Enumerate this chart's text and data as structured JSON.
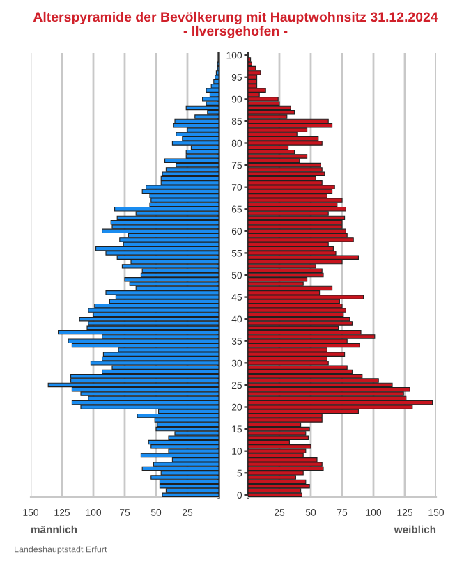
{
  "chart_data": [
    {
      "type": "bar",
      "orientation": "horizontal",
      "title": "Alterspyramide der Bevölkerung mit Hauptwohnsitz 31.12.2024",
      "subtitle": "- Ilversgehofen -",
      "xlabel": "männlich",
      "annotations": [
        "Landeshauptstadt Erfurt"
      ],
      "categories": [
        null,
        null,
        null,
        null,
        null,
        null,
        null,
        null,
        null,
        null,
        null,
        null,
        null,
        null,
        null,
        null,
        null,
        null,
        null,
        null,
        null,
        null,
        null,
        null,
        null,
        null,
        null,
        null,
        null,
        null,
        null,
        null,
        null,
        null,
        null,
        null,
        null,
        null,
        null,
        null,
        null,
        null,
        null,
        null,
        null,
        null,
        null,
        null,
        null,
        null,
        null,
        null,
        null,
        null,
        null,
        null,
        null,
        null,
        null,
        null,
        null,
        null,
        null,
        null,
        null,
        null,
        null,
        null,
        null,
        null,
        null,
        null,
        null,
        null,
        null,
        null,
        null,
        null,
        null,
        null,
        null,
        null,
        null,
        null,
        null,
        null,
        null,
        null,
        null,
        null,
        null,
        null,
        null,
        null,
        null,
        null,
        null,
        null,
        null,
        null,
        null
      ],
      "series": [
        {
          "color": "#1a8cf0",
          "values": [
            0,
            0,
            1,
            1,
            2,
            3,
            4,
            6,
            10,
            7,
            13,
            10,
            26,
            9,
            19,
            35,
            36,
            25,
            34,
            29,
            37,
            22,
            26,
            26,
            43,
            34,
            42,
            45,
            46,
            46,
            58,
            61,
            55,
            54,
            55,
            83,
            66,
            81,
            86,
            85,
            93,
            72,
            79,
            76,
            98,
            90,
            81,
            70,
            77,
            61,
            62,
            75,
            71,
            66,
            90,
            82,
            87,
            99,
            104,
            100,
            111,
            104,
            105,
            128,
            93,
            120,
            117,
            80,
            92,
            93,
            102,
            85,
            93,
            118,
            118,
            136,
            117,
            110,
            104,
            117,
            110,
            48,
            65,
            51,
            49,
            50,
            35,
            40,
            56,
            54,
            40,
            62,
            37,
            52,
            61,
            46,
            54,
            47,
            47,
            42,
            45
          ]
        }
      ],
      "xlim": [
        150,
        0
      ],
      "xticks": [
        150,
        125,
        100,
        75,
        50,
        25
      ],
      "grid": "x",
      "tick_labels": "x"
    },
    {
      "type": "bar",
      "orientation": "horizontal",
      "xlabel": "weiblich",
      "categories": [
        "100",
        null,
        null,
        null,
        null,
        "95",
        null,
        null,
        null,
        null,
        "90",
        null,
        null,
        null,
        null,
        "85",
        null,
        null,
        null,
        null,
        "80",
        null,
        null,
        null,
        null,
        "75",
        null,
        null,
        null,
        null,
        "70",
        null,
        null,
        null,
        null,
        "65",
        null,
        null,
        null,
        null,
        "60",
        null,
        null,
        null,
        null,
        "55",
        null,
        null,
        null,
        null,
        "50",
        null,
        null,
        null,
        null,
        "45",
        null,
        null,
        null,
        null,
        "40",
        null,
        null,
        null,
        null,
        "35",
        null,
        null,
        null,
        null,
        "30",
        null,
        null,
        null,
        null,
        "25",
        null,
        null,
        null,
        null,
        "20",
        null,
        null,
        null,
        null,
        "15",
        null,
        null,
        null,
        null,
        "10",
        null,
        null,
        null,
        null,
        "5",
        null,
        null,
        null,
        null,
        "0"
      ],
      "series": [
        {
          "color": "#c8141e",
          "values": [
            0,
            2,
            3,
            6,
            10,
            7,
            7,
            7,
            14,
            9,
            24,
            25,
            34,
            37,
            31,
            64,
            67,
            47,
            39,
            56,
            59,
            32,
            37,
            47,
            41,
            58,
            59,
            61,
            54,
            59,
            69,
            67,
            63,
            75,
            71,
            78,
            64,
            77,
            75,
            75,
            78,
            79,
            84,
            64,
            68,
            70,
            88,
            75,
            54,
            59,
            60,
            47,
            44,
            67,
            57,
            92,
            73,
            75,
            78,
            76,
            81,
            83,
            72,
            90,
            101,
            79,
            89,
            63,
            77,
            63,
            64,
            79,
            83,
            91,
            104,
            115,
            129,
            124,
            126,
            147,
            131,
            88,
            59,
            59,
            42,
            49,
            46,
            48,
            33,
            50,
            46,
            44,
            55,
            59,
            60,
            44,
            38,
            46,
            49,
            42,
            43
          ]
        }
      ],
      "xlim": [
        0,
        150
      ],
      "xticks": [
        25,
        50,
        75,
        100,
        125,
        150
      ],
      "grid": "x"
    }
  ]
}
